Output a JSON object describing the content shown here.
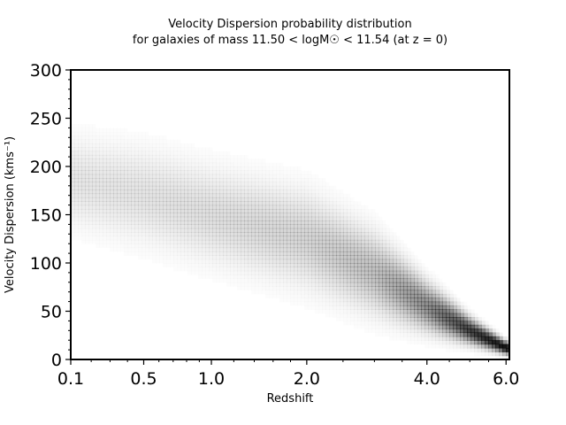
{
  "chart_data": {
    "type": "heatmap",
    "title_line1": "Velocity Dispersion probability distribution",
    "title_line2": "for galaxies of mass 11.50 < logM☉ < 11.54 (at z = 0)",
    "xlabel": "Redshift",
    "ylabel": "Velocity Dispersion (kms⁻¹)",
    "x_scale": "log(1+z)",
    "xlim": [
      0.1,
      6.1
    ],
    "ylim": [
      0,
      300
    ],
    "x_ticks": [
      {
        "value": 0.1,
        "label": "0.1"
      },
      {
        "value": 0.5,
        "label": "0.5"
      },
      {
        "value": 1.0,
        "label": "1.0"
      },
      {
        "value": 2.0,
        "label": "2.0"
      },
      {
        "value": 4.0,
        "label": "4.0"
      },
      {
        "value": 6.0,
        "label": "6.0"
      }
    ],
    "y_ticks": [
      {
        "value": 0,
        "label": "0"
      },
      {
        "value": 50,
        "label": "50"
      },
      {
        "value": 100,
        "label": "100"
      },
      {
        "value": 150,
        "label": "150"
      },
      {
        "value": 200,
        "label": "200"
      },
      {
        "value": 250,
        "label": "250"
      },
      {
        "value": 300,
        "label": "300"
      }
    ],
    "colormap": [
      "#ffffff",
      "#000000"
    ],
    "distribution": {
      "redshift": [
        0.1,
        0.5,
        1.0,
        2.0,
        3.0,
        4.0,
        5.0,
        6.0
      ],
      "sigma_center": [
        185,
        170,
        150,
        125,
        90,
        55,
        30,
        12
      ],
      "sigma_width": [
        28,
        30,
        30,
        30,
        25,
        15,
        8,
        4
      ],
      "relative_density": [
        0.1,
        0.11,
        0.13,
        0.17,
        0.25,
        0.45,
        0.75,
        0.95
      ]
    }
  }
}
